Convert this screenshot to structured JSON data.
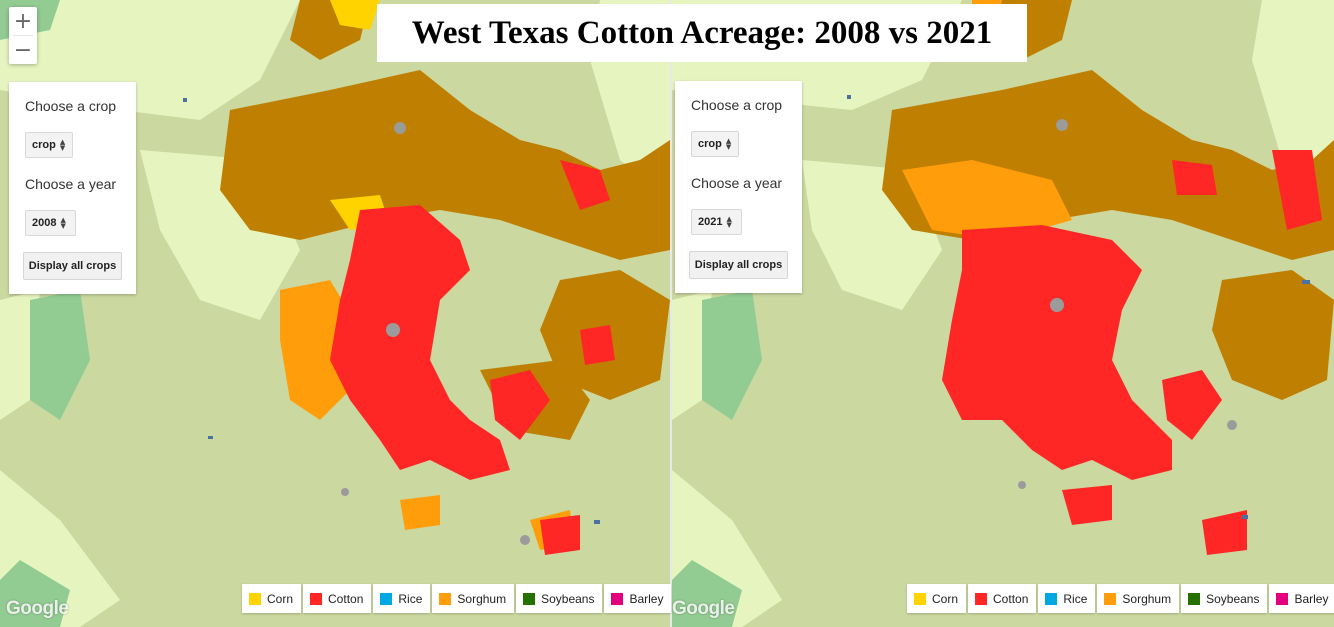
{
  "title": "West Texas Cotton Acreage: 2008 vs 2021",
  "controls": {
    "crop_label": "Choose a crop",
    "crop_value": "crop",
    "year_label": "Choose a year",
    "display_all_label": "Display all crops"
  },
  "left": {
    "year": "2008"
  },
  "right": {
    "year": "2021"
  },
  "zoom": {
    "in": "+",
    "out": "−"
  },
  "attribution": "Google",
  "legend": [
    {
      "label": "Corn",
      "color": "#ffd300"
    },
    {
      "label": "Cotton",
      "color": "#ff2626"
    },
    {
      "label": "Rice",
      "color": "#00a8e2"
    },
    {
      "label": "Sorghum",
      "color": "#ff9e0a"
    },
    {
      "label": "Soybeans",
      "color": "#267000"
    },
    {
      "label": "Barley",
      "color": "#e2007c"
    }
  ],
  "colors": {
    "grassland": "#cbd89f",
    "shrub": "#e6f5c0",
    "forest": "#93cc93",
    "fallow": "#bf7f00",
    "cotton": "#ff2626",
    "sorghum": "#ff9e0a",
    "corn": "#ffd300",
    "water": "#4d70a3",
    "developed": "#9b9b9b"
  }
}
